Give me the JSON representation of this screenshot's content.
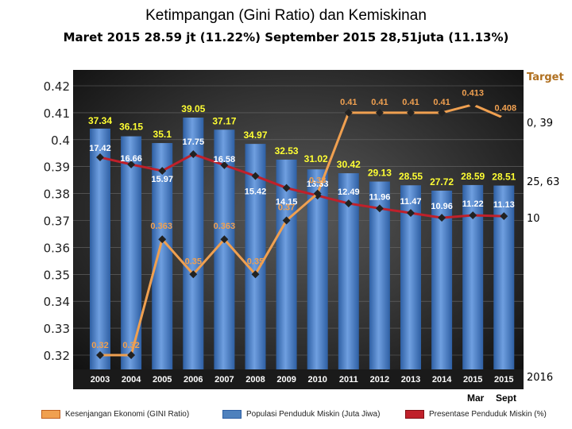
{
  "title": "Ketimpangan (Gini Ratio) dan Kemiskinan",
  "subtitle": "Maret 2015 28.59 jt (11.22%)  September 2015 28,51juta (11.13%)",
  "side_labels": {
    "target": "Target",
    "gini_target": "0, 39",
    "pop_target": "25, 63",
    "pct_target": "10",
    "year": "2016"
  },
  "period_labels": {
    "mar": "Mar",
    "sept": "Sept"
  },
  "legend": [
    {
      "label": "Kesenjangan Ekonomi (GINI Ratio)",
      "color": "#f0a050"
    },
    {
      "label": "Populasi Penduduk Miskin (Juta Jiwa)",
      "color": "#4f81bd"
    },
    {
      "label": "Presentase Penduduk Miskin (%)",
      "color": "#c0202a"
    }
  ],
  "chart_data": {
    "type": "bar",
    "categories": [
      "2003",
      "2004",
      "2005",
      "2006",
      "2007",
      "2008",
      "2009",
      "2010",
      "2011",
      "2012",
      "2013",
      "2014",
      "2015",
      "2015"
    ],
    "ylim": [
      0.32,
      0.42
    ],
    "yticks": [
      "0.42",
      "0.41",
      "0.4",
      "0.39",
      "0.38",
      "0.37",
      "0.36",
      "0.35",
      "0.34",
      "0.33",
      "0.32"
    ],
    "grid": true,
    "series": [
      {
        "kind": "bar",
        "color": "#4f81bd",
        "values": [
          37.34,
          36.15,
          35.1,
          39.05,
          37.17,
          34.97,
          32.53,
          31.02,
          30.42,
          29.13,
          28.55,
          27.72,
          28.59,
          28.51
        ],
        "labels": [
          "37.34",
          "36.15",
          "35.1",
          "39.05",
          "37.17",
          "34.97",
          "32.53",
          "31.02",
          "30.42",
          "29.13",
          "28.55",
          "27.72",
          "28.59",
          "28.51"
        ]
      },
      {
        "kind": "line",
        "color": "#c0202a",
        "values": [
          17.42,
          16.66,
          15.97,
          17.75,
          16.58,
          15.42,
          14.15,
          13.33,
          12.49,
          11.96,
          11.47,
          10.96,
          11.22,
          11.13
        ],
        "labels": [
          "17.42",
          "16.66",
          "15.97",
          "17.75",
          "16.58",
          "15.42",
          "14.15",
          "13.33",
          "12.49",
          "11.96",
          "11.47",
          "10.96",
          "11.22",
          "11.13"
        ]
      },
      {
        "kind": "line",
        "color": "#f0a050",
        "values": [
          0.32,
          0.32,
          0.363,
          0.35,
          0.363,
          0.35,
          0.37,
          0.38,
          0.41,
          0.41,
          0.41,
          0.41,
          0.413,
          0.408
        ],
        "labels": [
          "0.32",
          "0.32",
          "0.363",
          "0.35",
          "0.363",
          "0.35",
          "0.37",
          "0.38",
          "0.41",
          "0.41",
          "0.41",
          "0.41",
          "0.413",
          "0.408"
        ]
      }
    ]
  }
}
